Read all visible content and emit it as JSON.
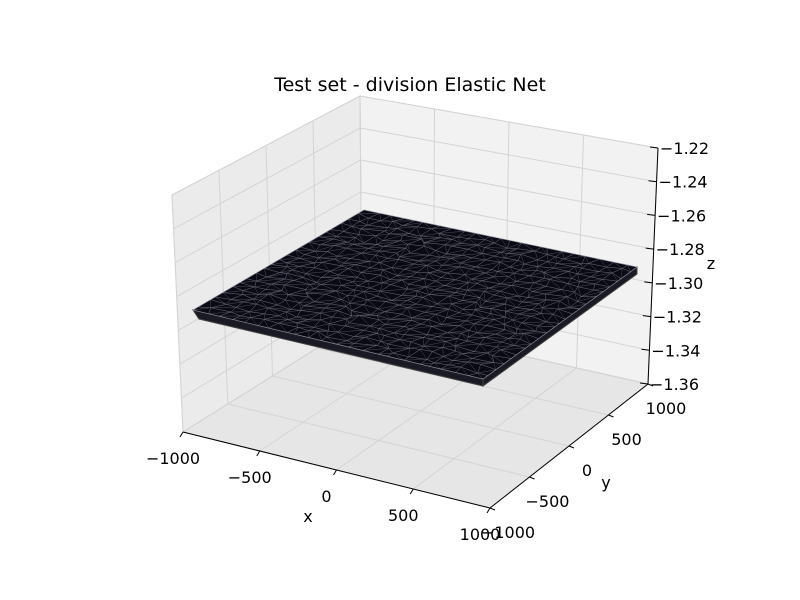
{
  "chart_data": {
    "type": "surface3d",
    "title": "Test set - division Elastic Net",
    "xlabel": "x",
    "ylabel": "y",
    "zlabel": "z",
    "xlim": [
      -1000,
      1000
    ],
    "ylim": [
      -1000,
      1000
    ],
    "zlim": [
      -1.36,
      1.22
    ],
    "x_ticks": [
      "−1000",
      "−500",
      "0",
      "500",
      "1000"
    ],
    "y_ticks": [
      "−1000",
      "−500",
      "0",
      "500",
      "1000"
    ],
    "z_ticks": [
      "−1.36",
      "−1.34",
      "−1.32",
      "−1.30",
      "−1.28",
      "−1.26",
      "−1.24",
      "−1.22"
    ],
    "surface": {
      "x_range": [
        -1000,
        1000
      ],
      "y_range": [
        -1000,
        1000
      ],
      "z_approx": -1.29,
      "face_color": "#0a0a14",
      "edge_color": "#8a8a9a"
    },
    "grid": true
  }
}
